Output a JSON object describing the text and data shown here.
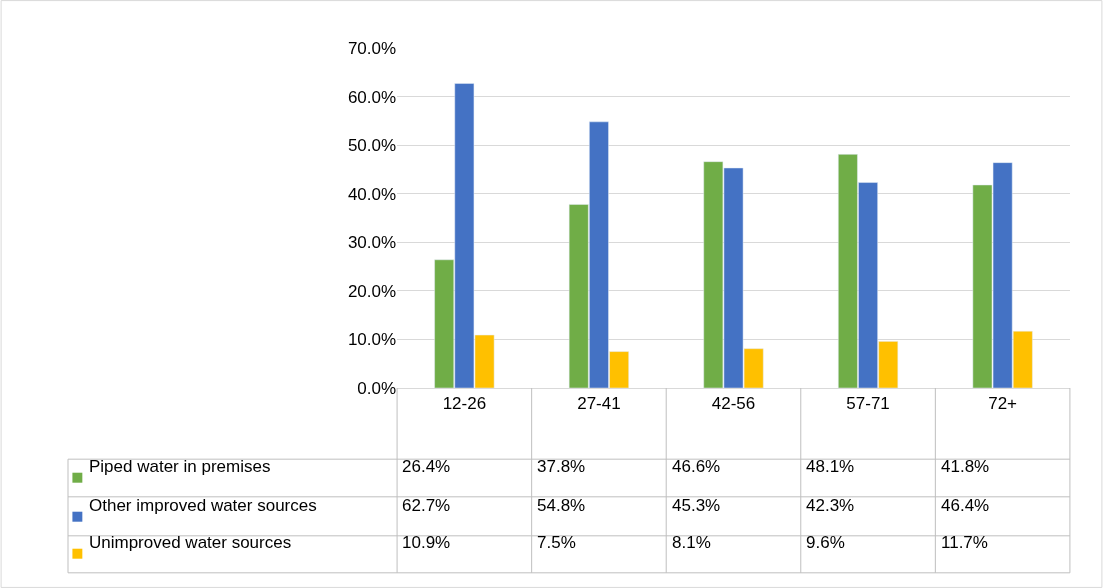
{
  "chart_data": {
    "type": "bar",
    "categories": [
      "12-26",
      "27-41",
      "42-56",
      "57-71",
      "72+"
    ],
    "series": [
      {
        "name": "Piped water in premises",
        "color": "#70ad47",
        "values": [
          26.4,
          37.8,
          46.6,
          48.1,
          41.8
        ],
        "value_labels": [
          "26.4%",
          "37.8%",
          "46.6%",
          "48.1%",
          "41.8%"
        ]
      },
      {
        "name": "Other improved water sources",
        "color": "#4472c4",
        "values": [
          62.7,
          54.8,
          45.3,
          42.3,
          46.4
        ],
        "value_labels": [
          "62.7%",
          "54.8%",
          "45.3%",
          "42.3%",
          "46.4%"
        ]
      },
      {
        "name": "Unimproved water sources",
        "color": "#ffc000",
        "values": [
          10.9,
          7.5,
          8.1,
          9.6,
          11.7
        ],
        "value_labels": [
          "10.9%",
          "7.5%",
          "8.1%",
          "9.6%",
          "11.7%"
        ]
      }
    ],
    "ylim": [
      0,
      70
    ],
    "yticks": [
      {
        "value": 0,
        "label": "0.0%"
      },
      {
        "value": 10,
        "label": "10.0%"
      },
      {
        "value": 20,
        "label": "20.0%"
      },
      {
        "value": 30,
        "label": "30.0%"
      },
      {
        "value": 40,
        "label": "40.0%"
      },
      {
        "value": 50,
        "label": "50.0%"
      },
      {
        "value": 60,
        "label": "60.0%"
      },
      {
        "value": 70,
        "label": "70.0%"
      }
    ],
    "grid": "y",
    "legend": "bottom left"
  }
}
